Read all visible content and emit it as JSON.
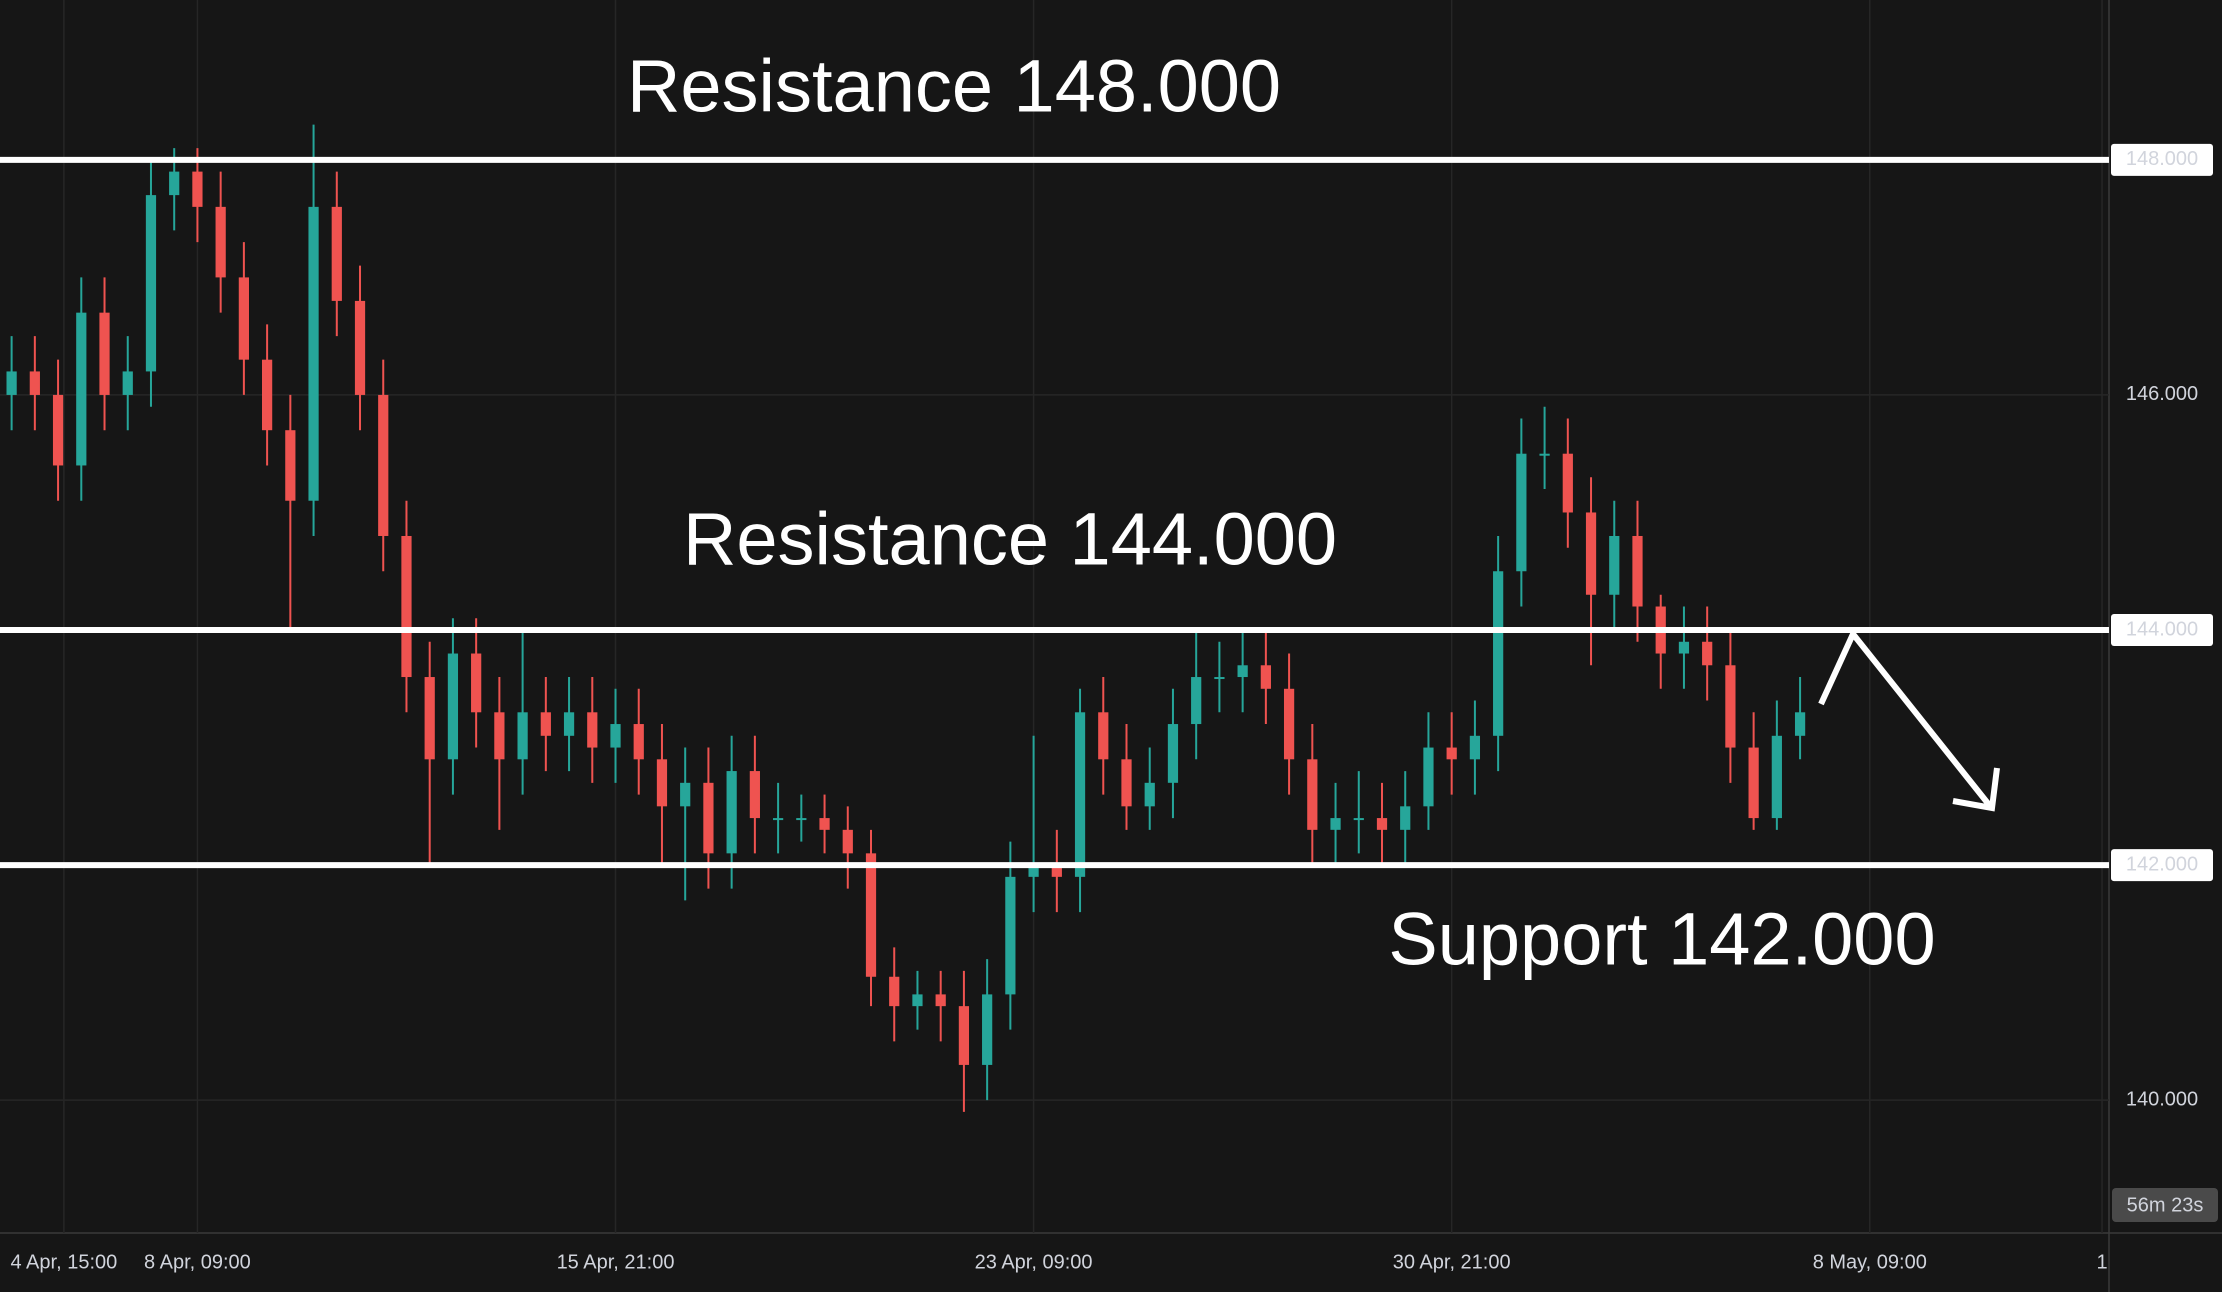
{
  "chart_data": {
    "type": "candlestick",
    "x": [
      0,
      1,
      2,
      3,
      4,
      5,
      6,
      7,
      8,
      9,
      10,
      11,
      12,
      13,
      14,
      15,
      16,
      17,
      18,
      19,
      20,
      21,
      22,
      23,
      24,
      25,
      26,
      27,
      28,
      29,
      30,
      31,
      32,
      33,
      34,
      35,
      36,
      37,
      38,
      39,
      40,
      41,
      42,
      43,
      44,
      45,
      46,
      47,
      48,
      49,
      50,
      51,
      52,
      53,
      54,
      55,
      56,
      57,
      58,
      59,
      60,
      61,
      62,
      63,
      64,
      65,
      66,
      67,
      68,
      69,
      70,
      71,
      72,
      73,
      74,
      75,
      76,
      77
    ],
    "open": [
      146.0,
      146.2,
      146.0,
      145.4,
      146.7,
      146.0,
      146.2,
      147.7,
      147.9,
      147.6,
      147.0,
      146.3,
      145.7,
      145.1,
      147.6,
      146.8,
      146.0,
      144.8,
      143.6,
      142.9,
      143.8,
      143.3,
      142.9,
      143.3,
      143.1,
      143.3,
      143.0,
      143.2,
      142.9,
      142.5,
      142.7,
      142.1,
      142.8,
      142.4,
      142.4,
      142.4,
      142.3,
      142.1,
      141.05,
      140.8,
      140.9,
      140.8,
      140.3,
      140.9,
      141.9,
      142.0,
      141.9,
      143.3,
      142.9,
      142.5,
      142.7,
      143.2,
      143.6,
      143.6,
      143.7,
      143.5,
      142.9,
      142.3,
      142.4,
      142.4,
      142.3,
      142.5,
      143.0,
      142.9,
      143.1,
      144.5,
      145.5,
      145.5,
      145.0,
      144.3,
      144.8,
      144.2,
      143.8,
      143.9,
      143.7,
      143.0,
      142.4,
      143.1
    ],
    "high": [
      146.5,
      146.5,
      146.3,
      147.0,
      147.0,
      146.5,
      148.0,
      148.1,
      148.1,
      147.9,
      147.3,
      146.6,
      146.0,
      148.3,
      147.9,
      147.1,
      146.3,
      145.1,
      143.9,
      144.1,
      144.1,
      143.6,
      144.0,
      143.6,
      143.6,
      143.6,
      143.5,
      143.5,
      143.2,
      143.0,
      143.0,
      143.1,
      143.1,
      142.7,
      142.6,
      142.6,
      142.5,
      142.3,
      141.3,
      141.1,
      141.1,
      141.1,
      141.2,
      142.2,
      143.1,
      142.3,
      143.5,
      143.6,
      143.2,
      143.0,
      143.5,
      144.0,
      143.9,
      144.0,
      144.0,
      143.8,
      143.2,
      142.7,
      142.8,
      142.7,
      142.8,
      143.3,
      143.3,
      143.4,
      144.8,
      145.8,
      145.9,
      145.8,
      145.3,
      145.1,
      145.1,
      144.3,
      144.2,
      144.2,
      144.0,
      143.3,
      143.4,
      143.6
    ],
    "low": [
      145.7,
      145.7,
      145.1,
      145.1,
      145.7,
      145.7,
      145.9,
      147.4,
      147.3,
      146.7,
      146.0,
      145.4,
      144.0,
      144.8,
      146.5,
      145.7,
      144.5,
      143.3,
      142.0,
      142.6,
      143.0,
      142.3,
      142.6,
      142.8,
      142.8,
      142.7,
      142.7,
      142.6,
      142.0,
      141.7,
      141.8,
      141.8,
      142.1,
      142.1,
      142.2,
      142.1,
      141.8,
      140.8,
      140.5,
      140.6,
      140.5,
      139.9,
      140.0,
      140.6,
      141.6,
      141.6,
      141.6,
      142.6,
      142.3,
      142.3,
      142.4,
      142.9,
      143.3,
      143.3,
      143.2,
      142.6,
      142.0,
      142.0,
      142.1,
      142.0,
      142.0,
      142.3,
      142.6,
      142.6,
      142.8,
      144.2,
      145.2,
      144.7,
      143.7,
      144.0,
      143.9,
      143.5,
      143.5,
      143.4,
      142.7,
      142.3,
      142.3,
      142.9
    ],
    "close": [
      146.2,
      146.0,
      145.4,
      146.7,
      146.0,
      146.2,
      147.7,
      147.9,
      147.6,
      147.0,
      146.3,
      145.7,
      145.1,
      147.6,
      146.8,
      146.0,
      144.8,
      143.6,
      142.9,
      143.8,
      143.3,
      142.9,
      143.3,
      143.1,
      143.3,
      143.0,
      143.2,
      142.9,
      142.5,
      142.7,
      142.1,
      142.8,
      142.4,
      142.4,
      142.4,
      142.3,
      142.1,
      141.05,
      140.8,
      140.9,
      140.8,
      140.3,
      140.9,
      141.9,
      142.0,
      141.9,
      143.3,
      142.9,
      142.5,
      142.7,
      143.2,
      143.6,
      143.6,
      143.7,
      143.5,
      142.9,
      142.3,
      142.4,
      142.4,
      142.3,
      142.5,
      143.0,
      142.9,
      143.1,
      144.5,
      145.5,
      145.5,
      145.0,
      144.3,
      144.8,
      144.2,
      143.8,
      143.9,
      143.7,
      143.0,
      142.4,
      143.1,
      143.3
    ],
    "up_color": "#26a69a",
    "down_color": "#ef5350",
    "xlim": [
      -0.5,
      90.3
    ],
    "xticks": [
      {
        "value": 2.25,
        "label": "4 Apr, 15:00"
      },
      {
        "value": 8,
        "label": "8 Apr, 09:00"
      },
      {
        "value": 26,
        "label": "15 Apr, 21:00"
      },
      {
        "value": 44,
        "label": "23 Apr, 09:00"
      },
      {
        "value": 62,
        "label": "30 Apr, 21:00"
      },
      {
        "value": 80,
        "label": "8 May, 09:00"
      },
      {
        "value": 90,
        "label": "1"
      }
    ],
    "ylim": [
      138.87,
      149.36
    ],
    "yticks": [
      {
        "value": 140,
        "label": "140.000"
      },
      {
        "value": 142,
        "label": "142.000"
      },
      {
        "value": 144,
        "label": "144.000"
      },
      {
        "value": 146,
        "label": "146.000"
      },
      {
        "value": 148,
        "label": "148.000"
      }
    ],
    "levels": [
      148,
      144,
      142
    ],
    "annotations": [
      "Resistance 148.000",
      "Resistance 144.000",
      "Support 142.000"
    ],
    "countdown": "56m 23s",
    "grid": true
  }
}
